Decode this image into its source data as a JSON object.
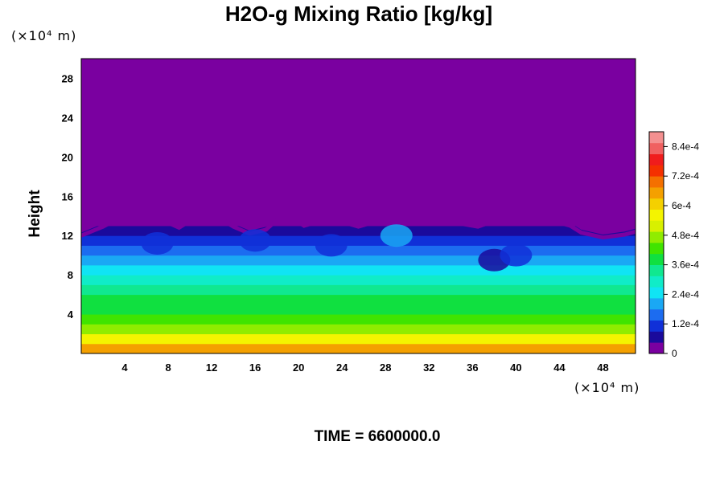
{
  "chart_data": {
    "type": "heatmap",
    "title": "H2O-g Mixing Ratio [kg/kg]",
    "ylabel": "Height",
    "xlabel": "",
    "y_unit": "(×10⁴ m)",
    "x_unit": "(×10⁴ m)",
    "time_label": "TIME = 6600000.0",
    "xlim": [
      0,
      51
    ],
    "ylim": [
      0,
      30
    ],
    "x_ticks": [
      4,
      8,
      12,
      16,
      20,
      24,
      28,
      32,
      36,
      40,
      44,
      48
    ],
    "y_ticks": [
      4,
      8,
      12,
      16,
      20,
      24,
      28
    ],
    "colorbar": {
      "min": 0,
      "max": 0.0009,
      "tick_values": [
        0,
        0.00012,
        0.00024,
        0.00036,
        0.00048,
        0.0006,
        0.00072,
        0.00084
      ],
      "tick_labels": [
        "0",
        "1.2e-4",
        "2.4e-4",
        "3.6e-4",
        "4.8e-4",
        "6e-4",
        "7.2e-4",
        "8.4e-4"
      ],
      "colors": [
        "#7a00a0",
        "#1a0a9c",
        "#1030d8",
        "#1c6cf0",
        "#1aa8f4",
        "#10e4f4",
        "#10ecc8",
        "#10e890",
        "#10e040",
        "#40e400",
        "#90ec00",
        "#d8f000",
        "#f4f400",
        "#f4d000",
        "#f4a000",
        "#f47000",
        "#f43000",
        "#f01c1c",
        "#f06060",
        "#f49090"
      ]
    },
    "profile": [
      {
        "height": 0,
        "value": 0.00063
      },
      {
        "height": 1,
        "value": 0.00057
      },
      {
        "height": 2,
        "value": 0.00049
      },
      {
        "height": 3,
        "value": 0.00044
      },
      {
        "height": 4,
        "value": 0.0004
      },
      {
        "height": 5,
        "value": 0.00036
      },
      {
        "height": 6,
        "value": 0.00032
      },
      {
        "height": 7,
        "value": 0.00028
      },
      {
        "height": 8,
        "value": 0.00024
      },
      {
        "height": 9,
        "value": 0.00021
      },
      {
        "height": 10,
        "value": 0.00016
      },
      {
        "height": 11,
        "value": 0.00011
      },
      {
        "height": 12,
        "value": 6e-05
      },
      {
        "height": 13,
        "value": 2e-05
      },
      {
        "height": 14,
        "value": 0
      },
      {
        "height": 30,
        "value": 0
      }
    ],
    "moist_top_height": [
      [
        0,
        12.3
      ],
      [
        2,
        13.2
      ],
      [
        3,
        13.8
      ],
      [
        6,
        13.9
      ],
      [
        8,
        13.6
      ],
      [
        9,
        13.1
      ],
      [
        10,
        13.8
      ],
      [
        13,
        13.9
      ],
      [
        14,
        13.2
      ],
      [
        15.5,
        12.5
      ],
      [
        17,
        12.9
      ],
      [
        18,
        13.9
      ],
      [
        19.5,
        14.0
      ],
      [
        20.5,
        13.3
      ],
      [
        22,
        13.8
      ],
      [
        24,
        13.7
      ],
      [
        25.5,
        13.2
      ],
      [
        27,
        13.7
      ],
      [
        29,
        13.6
      ],
      [
        30,
        14.0
      ],
      [
        33,
        14.0
      ],
      [
        35,
        13.5
      ],
      [
        36.5,
        13.2
      ],
      [
        38,
        13.8
      ],
      [
        40,
        13.9
      ],
      [
        43,
        13.9
      ],
      [
        45,
        13.3
      ],
      [
        46,
        12.6
      ],
      [
        48,
        12.1
      ],
      [
        50,
        12.4
      ],
      [
        51,
        12.7
      ]
    ],
    "dry_patches": [
      {
        "x": 38,
        "height": 9.5,
        "value": 8e-05
      },
      {
        "x": 16,
        "height": 11.5,
        "value": 0.0001
      },
      {
        "x": 23,
        "height": 11,
        "value": 0.00012
      },
      {
        "x": 7,
        "height": 11.2,
        "value": 0.00012
      },
      {
        "x": 29,
        "height": 12,
        "value": 0.00022
      },
      {
        "x": 40,
        "height": 10,
        "value": 0.00012
      }
    ]
  }
}
